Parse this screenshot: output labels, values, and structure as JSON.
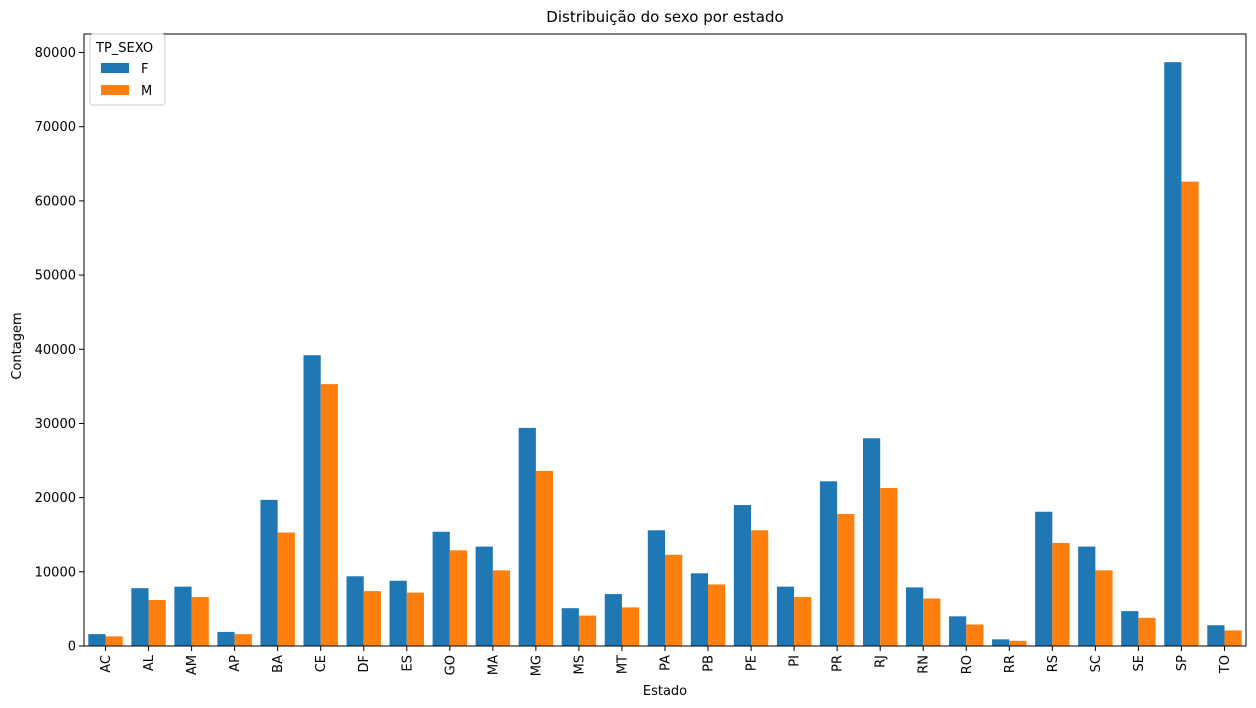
{
  "chart_data": {
    "type": "bar",
    "title": "Distribuição do sexo por estado",
    "xlabel": "Estado",
    "ylabel": "Contagem",
    "ylim": [
      0,
      82500
    ],
    "yticks": [
      0,
      10000,
      20000,
      30000,
      40000,
      50000,
      60000,
      70000,
      80000
    ],
    "categories": [
      "AC",
      "AL",
      "AM",
      "AP",
      "BA",
      "CE",
      "DF",
      "ES",
      "GO",
      "MA",
      "MG",
      "MS",
      "MT",
      "PA",
      "PB",
      "PE",
      "PI",
      "PR",
      "RJ",
      "RN",
      "RO",
      "RR",
      "RS",
      "SC",
      "SE",
      "SP",
      "TO"
    ],
    "legend": {
      "title": "TP_SEXO",
      "placement": "top-left"
    },
    "series": [
      {
        "name": "F",
        "color": "#1f77b4",
        "values": [
          1600,
          7800,
          8000,
          1900,
          19700,
          39200,
          9400,
          8800,
          15400,
          13400,
          29400,
          5100,
          7000,
          15600,
          9800,
          19000,
          8000,
          22200,
          28000,
          7900,
          4000,
          900,
          18100,
          13400,
          4700,
          78700,
          2800
        ]
      },
      {
        "name": "M",
        "color": "#ff7f0e",
        "values": [
          1300,
          6200,
          6600,
          1600,
          15300,
          35300,
          7400,
          7200,
          12900,
          10200,
          23600,
          4100,
          5200,
          12300,
          8300,
          15600,
          6600,
          17800,
          21300,
          6400,
          2900,
          700,
          13900,
          10200,
          3800,
          62600,
          2100
        ]
      }
    ]
  }
}
